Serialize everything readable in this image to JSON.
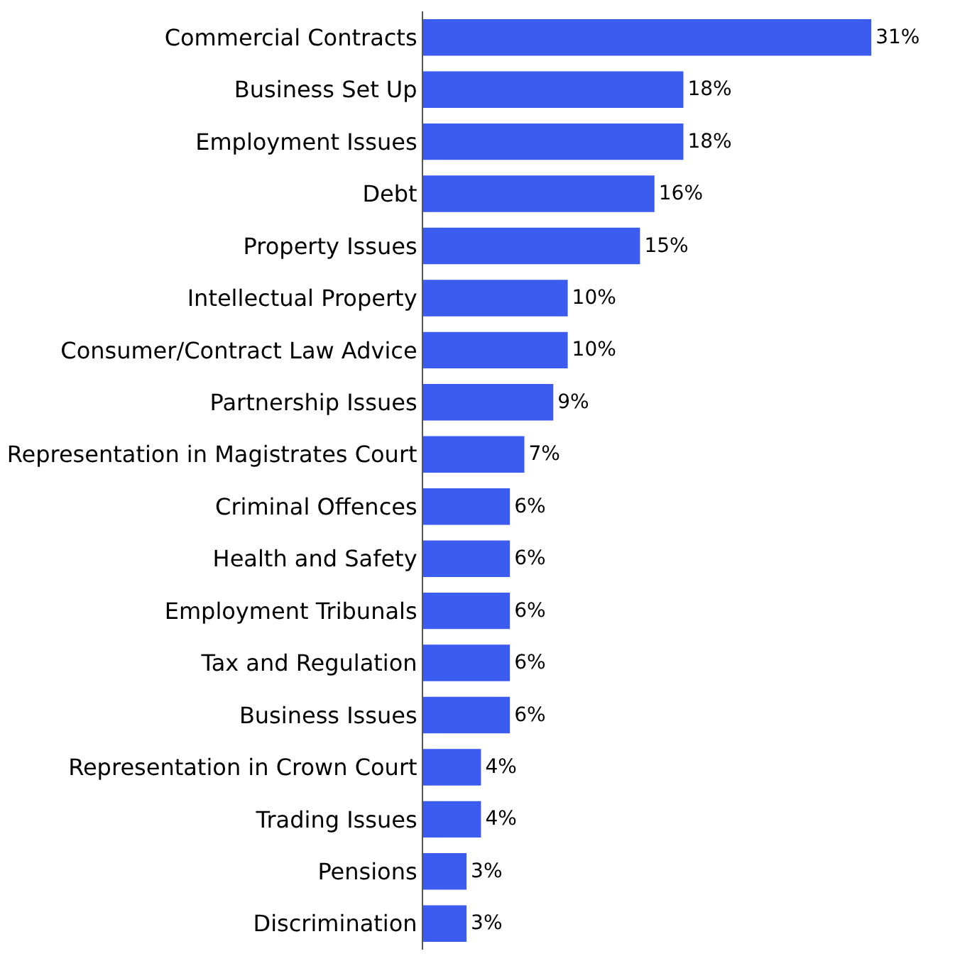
{
  "chart_data": {
    "type": "bar",
    "orientation": "horizontal",
    "categories": [
      "Commercial Contracts",
      "Business Set Up",
      "Employment Issues",
      "Debt",
      "Property Issues",
      "Intellectual Property",
      "Consumer/Contract Law Advice",
      "Partnership Issues",
      "Representation in Magistrates Court",
      "Criminal Offences",
      "Health and Safety",
      "Employment Tribunals",
      "Tax and Regulation",
      "Business Issues",
      "Representation in Crown Court",
      "Trading Issues",
      "Pensions",
      "Discrimination"
    ],
    "values": [
      31,
      18,
      18,
      16,
      15,
      10,
      10,
      9,
      7,
      6,
      6,
      6,
      6,
      6,
      4,
      4,
      3,
      3
    ],
    "value_labels": [
      "31%",
      "18%",
      "18%",
      "16%",
      "15%",
      "10%",
      "10%",
      "9%",
      "7%",
      "6%",
      "6%",
      "6%",
      "6%",
      "6%",
      "4%",
      "4%",
      "3%",
      "3%"
    ],
    "color": "#3c5cf0",
    "legend": false
  }
}
